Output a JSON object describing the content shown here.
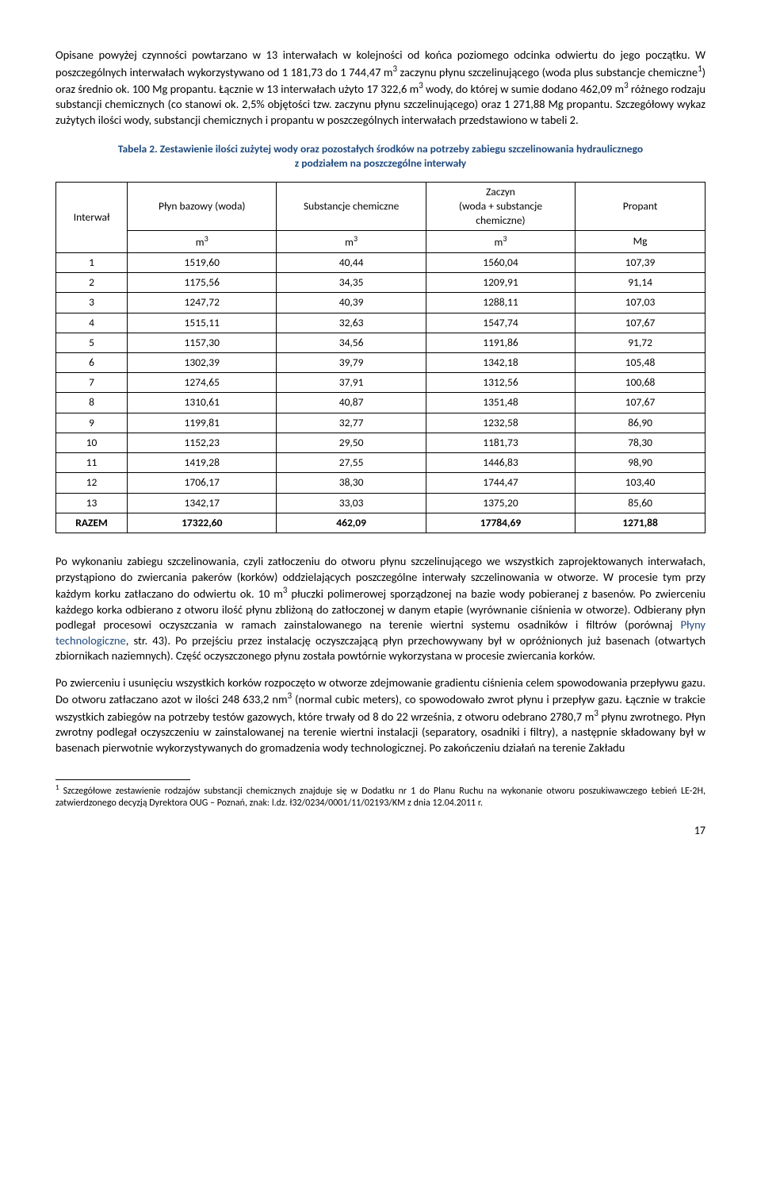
{
  "para1_a": "Opisane powyżej czynności powtarzano w 13 interwałach w kolejności od końca poziomego odcinka odwiertu do jego początku. W poszczególnych interwałach wykorzystywano od 1 181,73 do 1 744,47 m",
  "para1_b": " zaczynu płynu szczelinującego (woda plus substancje chemiczne",
  "para1_c": ") oraz średnio ok. 100 Mg propantu. Łącznie w 13 interwałach użyto 17 322,6 m",
  "para1_d": " wody, do której w sumie dodano 462,09 m",
  "para1_e": " różnego rodzaju substancji chemicznych (co stanowi ok. 2,5% objętości tzw. zaczynu płynu szczelinującego) oraz 1 271,88 Mg propantu. Szczegółowy wykaz zużytych ilości wody, substancji chemicznych i propantu w poszczególnych interwałach przedstawiono w tabeli 2.",
  "caption_a": "Tabela 2. Zestawienie ilości zużytej wody oraz pozostałych środków na potrzeby zabiegu szczelinowania hydraulicznego",
  "caption_b": "z podziałem na poszczególne interwały",
  "headers": {
    "interwal": "Interwał",
    "plyn": "Płyn bazowy (woda)",
    "subst": "Substancje chemiczne",
    "zaczyn_a": "Zaczyn",
    "zaczyn_b": "(woda + substancje",
    "zaczyn_c": "chemiczne)",
    "propant": "Propant",
    "m3": "m",
    "mg": "Mg"
  },
  "rows": [
    {
      "i": "1",
      "a": "1519,60",
      "b": "40,44",
      "c": "1560,04",
      "d": "107,39"
    },
    {
      "i": "2",
      "a": "1175,56",
      "b": "34,35",
      "c": "1209,91",
      "d": "91,14"
    },
    {
      "i": "3",
      "a": "1247,72",
      "b": "40,39",
      "c": "1288,11",
      "d": "107,03"
    },
    {
      "i": "4",
      "a": "1515,11",
      "b": "32,63",
      "c": "1547,74",
      "d": "107,67"
    },
    {
      "i": "5",
      "a": "1157,30",
      "b": "34,56",
      "c": "1191,86",
      "d": "91,72"
    },
    {
      "i": "6",
      "a": "1302,39",
      "b": "39,79",
      "c": "1342,18",
      "d": "105,48"
    },
    {
      "i": "7",
      "a": "1274,65",
      "b": "37,91",
      "c": "1312,56",
      "d": "100,68"
    },
    {
      "i": "8",
      "a": "1310,61",
      "b": "40,87",
      "c": "1351,48",
      "d": "107,67"
    },
    {
      "i": "9",
      "a": "1199,81",
      "b": "32,77",
      "c": "1232,58",
      "d": "86,90"
    },
    {
      "i": "10",
      "a": "1152,23",
      "b": "29,50",
      "c": "1181,73",
      "d": "78,30"
    },
    {
      "i": "11",
      "a": "1419,28",
      "b": "27,55",
      "c": "1446,83",
      "d": "98,90"
    },
    {
      "i": "12",
      "a": "1706,17",
      "b": "38,30",
      "c": "1744,47",
      "d": "103,40"
    },
    {
      "i": "13",
      "a": "1342,17",
      "b": "33,03",
      "c": "1375,20",
      "d": "85,60"
    }
  ],
  "total": {
    "label": "RAZEM",
    "a": "17322,60",
    "b": "462,09",
    "c": "17784,69",
    "d": "1271,88"
  },
  "para2_a": "Po wykonaniu zabiegu szczelinowania, czyli zatłoczeniu do otworu płynu szczelinującego we wszystkich zaprojektowanych interwałach, przystąpiono do zwiercania pakerów (korków) oddzielających poszczególne interwały szczelinowania w otworze. W procesie tym przy każdym korku zatłaczano do odwiertu ok. 10 m",
  "para2_b": " płuczki polimerowej sporządzonej na bazie wody pobieranej z basenów. Po zwierceniu każdego korka odbierano z otworu ilość płynu zbliżoną do zatłoczonej w danym etapie (wyrównanie ciśnienia w otworze). Odbierany płyn podlegał procesowi oczyszczania w ramach zainstalowanego na terenie wiertni systemu osadników i filtrów (porównaj ",
  "para2_link": "Płyny technologiczne",
  "para2_c": ", str. 43). Po przejściu przez instalację oczyszczającą płyn przechowywany był w opróżnionych już basenach (otwartych zbiornikach naziemnych). Część oczyszczonego płynu została powtórnie wykorzystana w procesie zwiercania korków.",
  "para3_a": "Po zwierceniu i usunięciu wszystkich korków rozpoczęto w otworze zdejmowanie gradientu ciśnienia celem spowodowania przepływu gazu. Do otworu zatłaczano azot w ilości 248 633,2 nm",
  "para3_b": " (normal cubic meters), co spowodowało zwrot płynu i przepływ gazu. Łącznie w trakcie wszystkich zabiegów na potrzeby testów gazowych, które trwały od 8 do 22 września, z otworu odebrano 2780,7 m",
  "para3_c": " płynu zwrotnego. Płyn zwrotny podlegał oczyszczeniu w zainstalowanej na terenie wiertni instalacji (separatory, osadniki i filtry), a następnie składowany był w basenach pierwotnie wykorzystywanych do gromadzenia wody technologicznej. Po zakończeniu działań na terenie Zakładu",
  "footnote_a": " Szczegółowe zestawienie rodzajów substancji chemicznych znajduje się w Dodatku nr 1 do Planu Ruchu na wykonanie otworu poszukiwawczego Łebień LE-2H, zatwierdzonego decyzją Dyrektora OUG – Poznań, znak: l.dz. ł32/0234/0001/11/02193/KM z dnia 12.04.2011 r.",
  "pageno": "17"
}
